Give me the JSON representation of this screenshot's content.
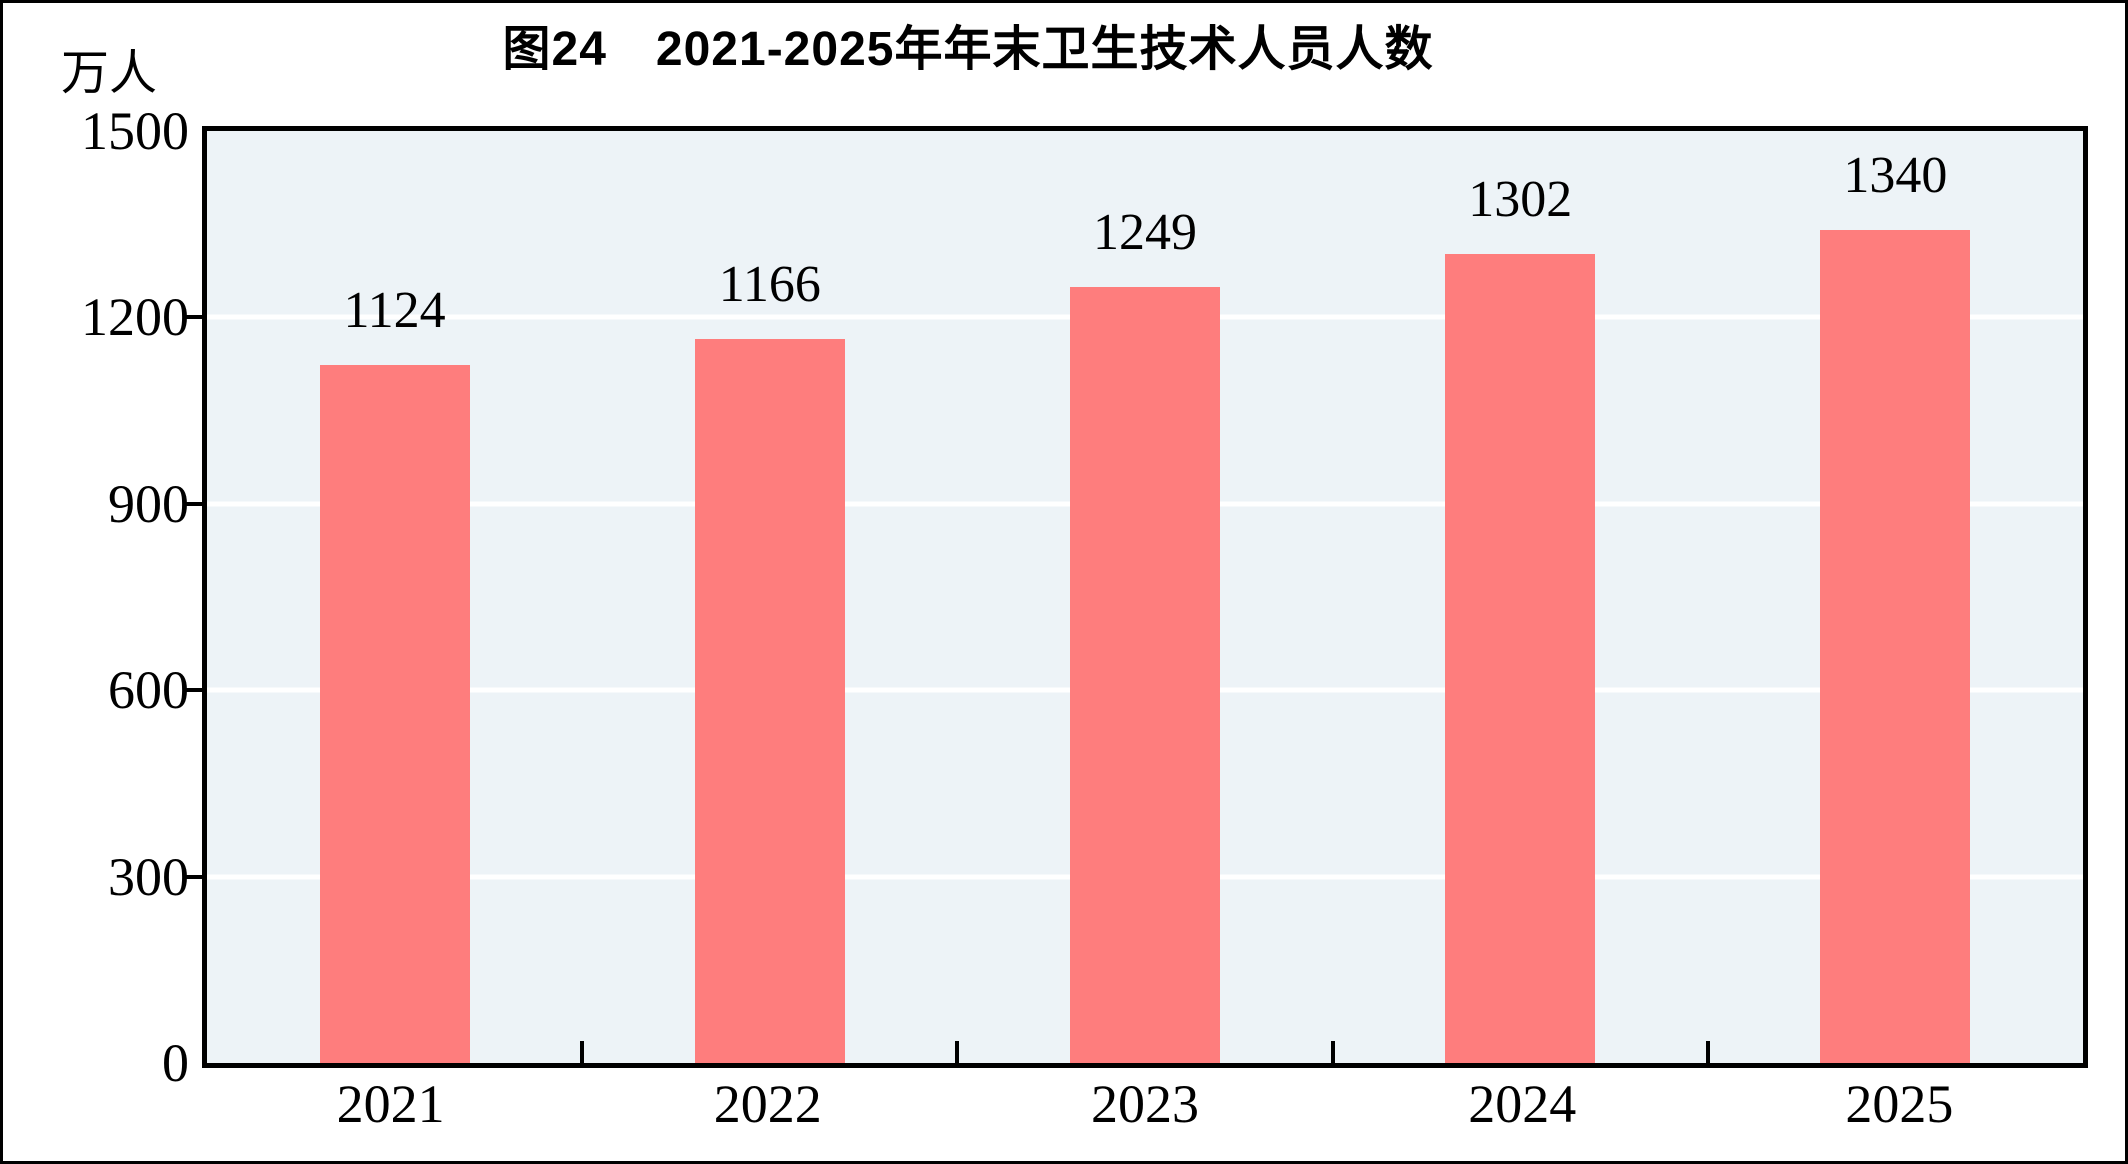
{
  "figure": {
    "title": "图24　2021-2025年年末卫生技术人员人数",
    "unit_label": "万人"
  },
  "chart_data": {
    "type": "bar",
    "title": "图24　2021-2025年年末卫生技术人员人数",
    "categories": [
      "2021",
      "2022",
      "2023",
      "2024",
      "2025"
    ],
    "values": [
      1124,
      1166,
      1249,
      1302,
      1340
    ],
    "data_labels": [
      "1124",
      "1166",
      "1249",
      "1302",
      "1340"
    ],
    "xlabel": "",
    "ylabel": "万人",
    "ylim": [
      0,
      1500
    ],
    "yticks": [
      0,
      300,
      600,
      900,
      1200,
      1500
    ],
    "ytick_labels": [
      "0",
      "300",
      "600",
      "900",
      "1200",
      "1500"
    ],
    "grid": true,
    "legend_position": "none",
    "colors": {
      "bar": "#fe7d7d",
      "plot_background": "#edf3f7",
      "gridline": "#ffffff",
      "axis": "#000000",
      "text": "#000000"
    }
  }
}
